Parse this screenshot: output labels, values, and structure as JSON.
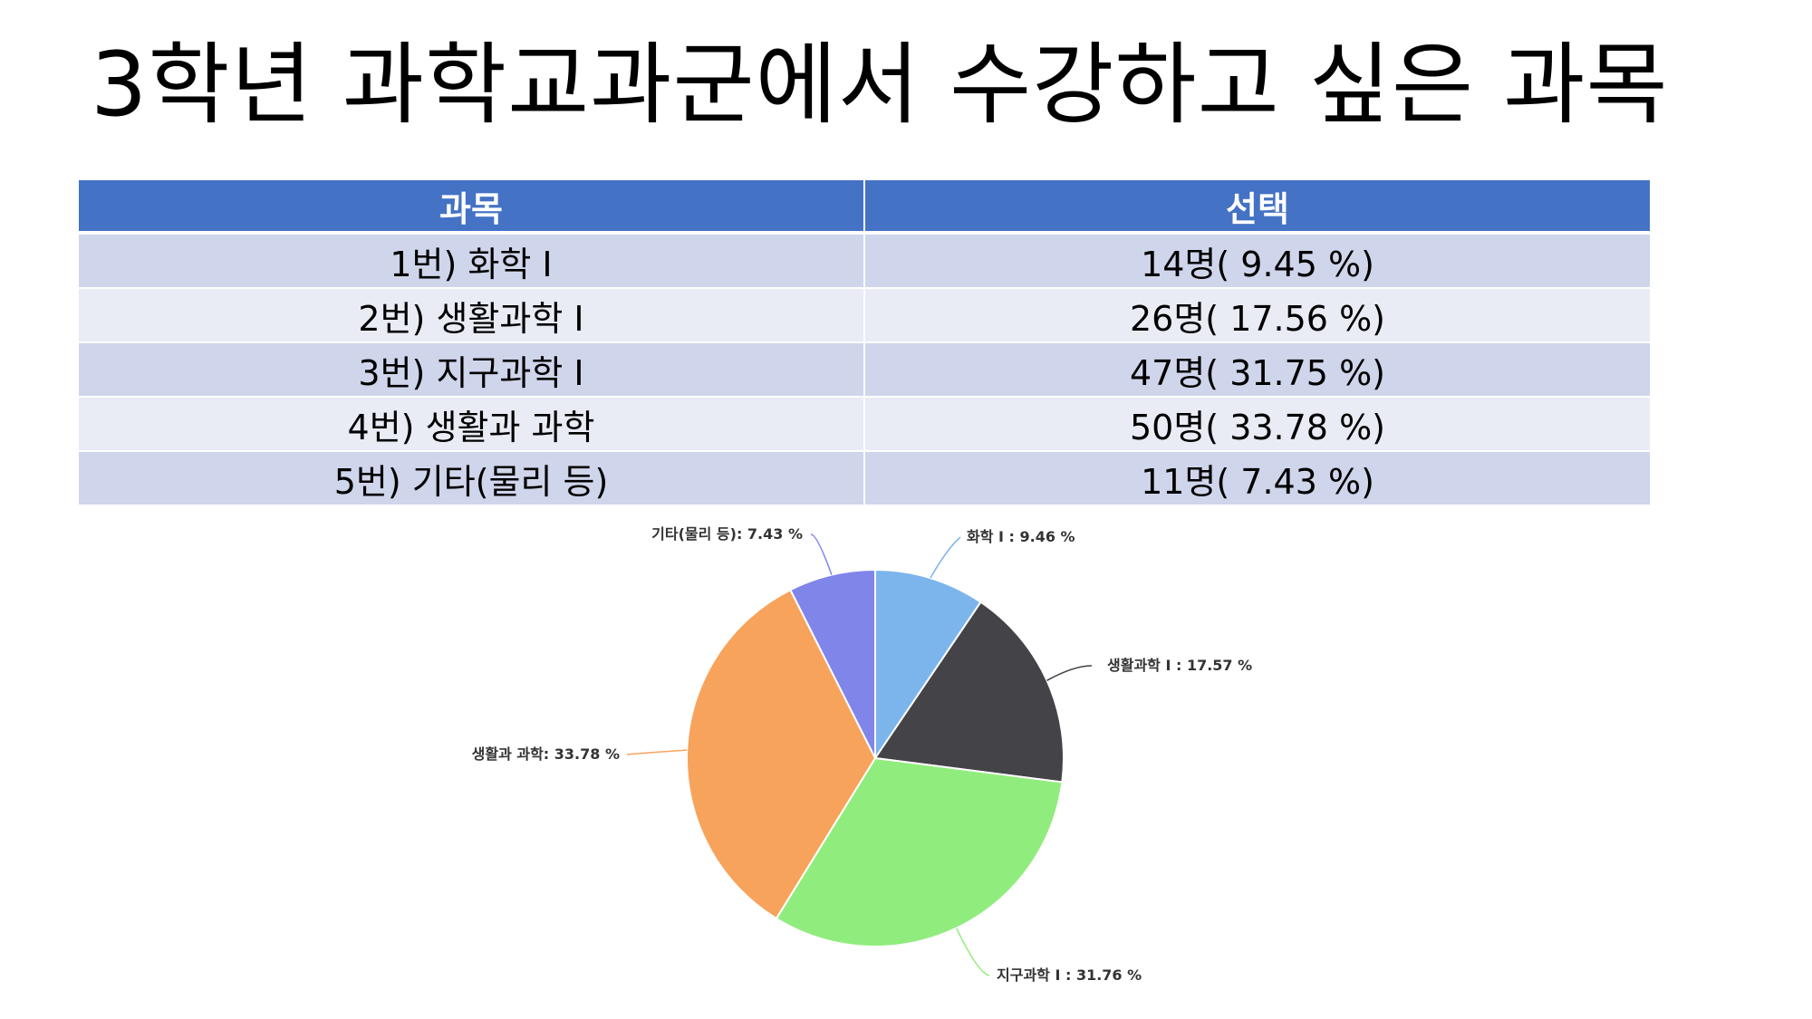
{
  "slide": {
    "title": "3학년 과학교과군에서 수강하고 싶은 과목"
  },
  "table": {
    "headers": [
      "과목",
      "선택"
    ],
    "rows": [
      {
        "subject": "1번) 화학 Ⅰ",
        "choice": "14명( 9.45 %)"
      },
      {
        "subject": "2번) 생활과학 Ⅰ",
        "choice": "26명( 17.56 %)"
      },
      {
        "subject": "3번) 지구과학 Ⅰ",
        "choice": "47명( 31.75 %)"
      },
      {
        "subject": "4번) 생활과 과학",
        "choice": "50명( 33.78 %)"
      },
      {
        "subject": "5번) 기타(물리 등)",
        "choice": "11명( 7.43 %)"
      }
    ]
  },
  "chart_data": {
    "type": "pie",
    "slices": [
      {
        "label": "화학 Ⅰ : 9.46 %",
        "value": 9.46,
        "color": "#7cb5ec"
      },
      {
        "label": "생활과학 Ⅰ : 17.57 %",
        "value": 17.57,
        "color": "#434348"
      },
      {
        "label": "지구과학 Ⅰ : 31.76 %",
        "value": 31.76,
        "color": "#90ed7d"
      },
      {
        "label": "생활과 과학: 33.78 %",
        "value": 33.78,
        "color": "#f7a35c"
      },
      {
        "label": "기타(물리 등): 7.43 %",
        "value": 7.43,
        "color": "#8085e9"
      }
    ],
    "start": "12 o'clock, clockwise"
  }
}
